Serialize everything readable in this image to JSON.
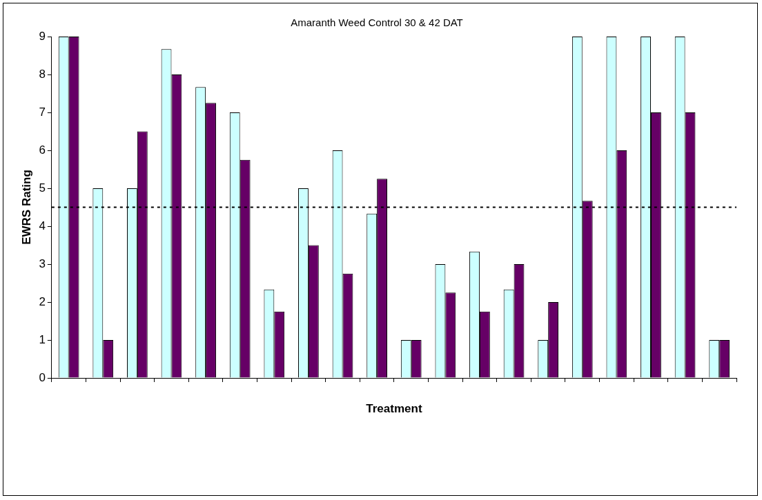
{
  "chart_data": {
    "type": "bar",
    "title": "Amaranth Weed Control 30 & 42 DAT",
    "xlabel": "Treatment",
    "ylabel": "EWRS Rating",
    "categories": [
      null,
      null,
      null,
      null,
      null,
      null,
      null,
      null,
      null,
      null,
      null,
      null,
      null,
      null,
      null,
      null,
      null,
      null,
      null,
      null
    ],
    "series": [
      {
        "color": "#ccffff",
        "values": [
          9,
          5,
          5,
          8.67,
          7.67,
          7,
          2.33,
          5,
          6,
          4.33,
          1,
          3,
          3.33,
          2.33,
          1,
          9,
          9,
          9,
          9,
          1
        ]
      },
      {
        "color": "#660066",
        "values": [
          9,
          1,
          6.5,
          8,
          7.25,
          5.75,
          1.75,
          3.5,
          2.75,
          5.25,
          1,
          2.25,
          1.75,
          3,
          2,
          4.67,
          6,
          7,
          7,
          1
        ]
      }
    ],
    "ylim": [
      0,
      9
    ],
    "yticks": [
      0,
      1,
      2,
      3,
      4,
      5,
      6,
      7,
      8,
      9
    ],
    "grid": false,
    "legend": false,
    "ref_lines": [
      {
        "axis": "y",
        "value": 4.5,
        "line_style": "dotted",
        "color": "#000000"
      }
    ]
  }
}
